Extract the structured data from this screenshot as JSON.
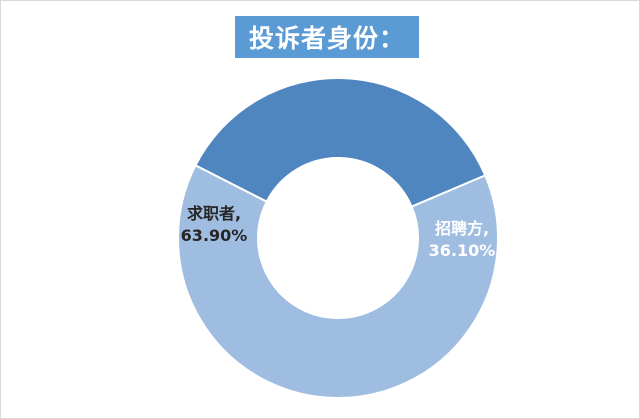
{
  "chart_data": {
    "type": "pie",
    "title": "投诉者身份：",
    "donut": true,
    "slices": [
      {
        "label": "招聘方",
        "value": 36.1,
        "value_text": "36.10%",
        "color": "#4f86c0",
        "label_color": "#ffffff"
      },
      {
        "label": "求职者",
        "value": 63.9,
        "value_text": "63.90%",
        "color": "#9fbde1",
        "label_color": "#262626"
      }
    ]
  }
}
